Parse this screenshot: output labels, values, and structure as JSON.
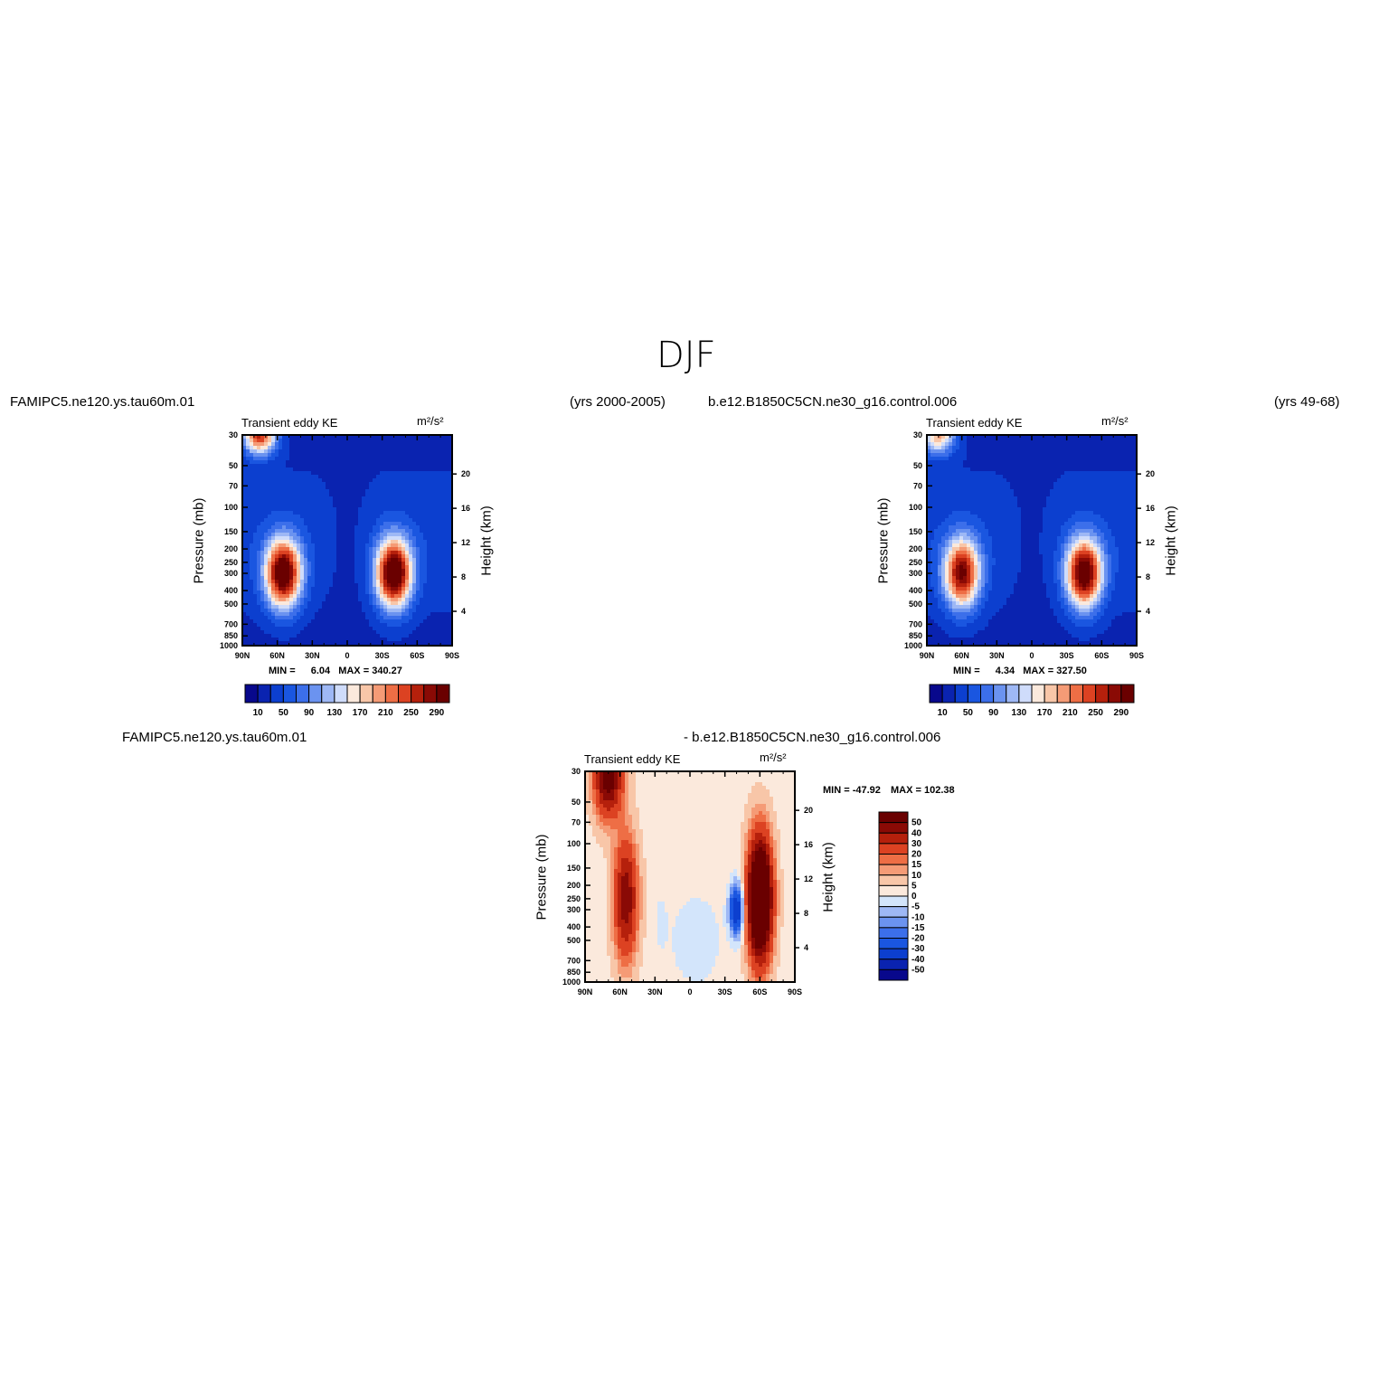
{
  "page_title": "DJF",
  "panels": [
    {
      "case_name": "FAMIPC5.ne120.ys.tau60m.01",
      "years": "(yrs 2000-2005)",
      "left_string": "Transient eddy KE",
      "right_string": "m²/s²",
      "stats": {
        "min_label": "MIN =",
        "min": "6.04",
        "max_label": "MAX =",
        "max": "340.27"
      },
      "colorbar_labels": [
        "10",
        "50",
        "90",
        "130",
        "170",
        "210",
        "250",
        "290"
      ]
    },
    {
      "case_name": "b.e12.B1850C5CN.ne30_g16.control.006",
      "years": "(yrs 49-68)",
      "left_string": "Transient eddy KE",
      "right_string": "m²/s²",
      "stats": {
        "min_label": "MIN =",
        "min": "4.34",
        "max_label": "MAX =",
        "max": "327.50"
      },
      "colorbar_labels": [
        "10",
        "50",
        "90",
        "130",
        "170",
        "210",
        "250",
        "290"
      ]
    },
    {
      "case_name": "FAMIPC5.ne120.ys.tau60m.01",
      "diff_label": "- b.e12.B1850C5CN.ne30_g16.control.006",
      "left_string": "Transient eddy KE",
      "right_string": "m²/s²",
      "stats": {
        "min_label": "MIN =",
        "min": "-47.92",
        "max_label": "MAX =",
        "max": "102.38"
      },
      "colorbar_labels": [
        "50",
        "40",
        "30",
        "20",
        "15",
        "10",
        "5",
        "0",
        "-5",
        "-10",
        "-15",
        "-20",
        "-30",
        "-40",
        "-50"
      ]
    }
  ],
  "chart_data": [
    {
      "type": "heatmap",
      "title": "Transient eddy KE",
      "units": "m²/s²",
      "xlabel": "",
      "ylabel": "Pressure (mb)",
      "y2label": "Height (km)",
      "x_ticks": [
        "90N",
        "60N",
        "30N",
        "0",
        "30S",
        "60S",
        "90S"
      ],
      "y_ticks": [
        "30",
        "50",
        "70",
        "100",
        "150",
        "200",
        "250",
        "300",
        "400",
        "500",
        "700",
        "850",
        "1000"
      ],
      "y2_ticks": [
        "20",
        "16",
        "12",
        "8",
        "4"
      ],
      "levels": [
        10,
        30,
        50,
        70,
        90,
        110,
        130,
        150,
        170,
        190,
        210,
        230,
        250,
        270,
        290
      ],
      "colors": [
        "#08088c",
        "#0a23b0",
        "#0c3fcf",
        "#1a56e0",
        "#3c6fea",
        "#6b93f0",
        "#9eb8f5",
        "#cfdcfb",
        "#fbe9dc",
        "#f8c6a8",
        "#f59b76",
        "#ee6e45",
        "#dc4222",
        "#b5200c",
        "#8a0a05",
        "#6a0000"
      ],
      "min": 6.04,
      "max": 340.27,
      "features": [
        {
          "lat": -40,
          "p": 300,
          "value": 330
        },
        {
          "lat": 55,
          "p": 300,
          "value": 320
        },
        {
          "lat": 75,
          "p": 30,
          "value": 250
        }
      ]
    },
    {
      "type": "heatmap",
      "title": "Transient eddy KE",
      "units": "m²/s²",
      "xlabel": "",
      "ylabel": "Pressure (mb)",
      "y2label": "Height (km)",
      "x_ticks": [
        "90N",
        "60N",
        "30N",
        "0",
        "30S",
        "60S",
        "90S"
      ],
      "y_ticks": [
        "30",
        "50",
        "70",
        "100",
        "150",
        "200",
        "250",
        "300",
        "400",
        "500",
        "700",
        "850",
        "1000"
      ],
      "y2_ticks": [
        "20",
        "16",
        "12",
        "8",
        "4"
      ],
      "levels": [
        10,
        30,
        50,
        70,
        90,
        110,
        130,
        150,
        170,
        190,
        210,
        230,
        250,
        270,
        290
      ],
      "colors": [
        "#08088c",
        "#0a23b0",
        "#0c3fcf",
        "#1a56e0",
        "#3c6fea",
        "#6b93f0",
        "#9eb8f5",
        "#cfdcfb",
        "#fbe9dc",
        "#f8c6a8",
        "#f59b76",
        "#ee6e45",
        "#dc4222",
        "#b5200c",
        "#8a0a05",
        "#6a0000"
      ],
      "min": 4.34,
      "max": 327.5,
      "features": [
        {
          "lat": -45,
          "p": 300,
          "value": 310
        },
        {
          "lat": 60,
          "p": 300,
          "value": 280
        },
        {
          "lat": 80,
          "p": 30,
          "value": 190
        }
      ]
    },
    {
      "type": "heatmap",
      "title": "Transient eddy KE",
      "units": "m²/s²",
      "xlabel": "",
      "ylabel": "Pressure (mb)",
      "y2label": "Height (km)",
      "x_ticks": [
        "90N",
        "60N",
        "30N",
        "0",
        "30S",
        "60S",
        "90S"
      ],
      "y_ticks": [
        "30",
        "50",
        "70",
        "100",
        "150",
        "200",
        "250",
        "300",
        "400",
        "500",
        "700",
        "850",
        "1000"
      ],
      "y2_ticks": [
        "20",
        "16",
        "12",
        "8",
        "4"
      ],
      "levels": [
        -50,
        -40,
        -30,
        -20,
        -15,
        -10,
        -5,
        0,
        5,
        10,
        15,
        20,
        30,
        40,
        50
      ],
      "colors": [
        "#08088c",
        "#0a23b0",
        "#0c3fcf",
        "#1a56e0",
        "#3c6fea",
        "#6b93f0",
        "#9eb8f5",
        "#d3e5fb",
        "#fbe9dc",
        "#f8c6a8",
        "#f59b76",
        "#ee6e45",
        "#dc4222",
        "#b5200c",
        "#8a0a05",
        "#6a0000"
      ],
      "min": -47.92,
      "max": 102.38,
      "features": [
        {
          "lat": -60,
          "p": 250,
          "value": 100
        },
        {
          "lat": -40,
          "p": 300,
          "value": -45
        },
        {
          "lat": 70,
          "p": 30,
          "value": 60
        },
        {
          "lat": 55,
          "p": 250,
          "value": 45
        }
      ]
    }
  ]
}
